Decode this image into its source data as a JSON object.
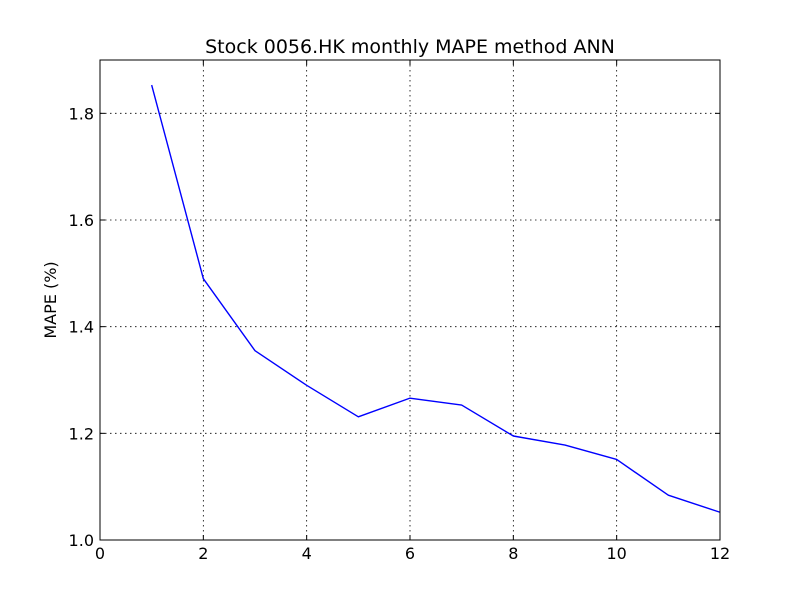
{
  "chart_data": {
    "type": "line",
    "title": "Stock 0056.HK monthly MAPE method ANN",
    "xlabel": "",
    "ylabel": "MAPE (%)",
    "xlim": [
      0,
      12
    ],
    "ylim": [
      1.0,
      1.9
    ],
    "xticks": [
      0,
      2,
      4,
      6,
      8,
      10,
      12
    ],
    "xtick_labels": [
      "0",
      "2",
      "4",
      "6",
      "8",
      "10",
      "12"
    ],
    "yticks": [
      1.0,
      1.2,
      1.4,
      1.6,
      1.8
    ],
    "ytick_labels": [
      "1.0",
      "1.2",
      "1.4",
      "1.6",
      "1.8"
    ],
    "grid": true,
    "series": [
      {
        "color": "#0000ff",
        "x": [
          1,
          2,
          3,
          4,
          5,
          6,
          7,
          8,
          9,
          10,
          11,
          12
        ],
        "y": [
          1.853,
          1.49,
          1.355,
          1.29,
          1.231,
          1.266,
          1.253,
          1.195,
          1.178,
          1.151,
          1.084,
          1.052
        ]
      }
    ]
  }
}
